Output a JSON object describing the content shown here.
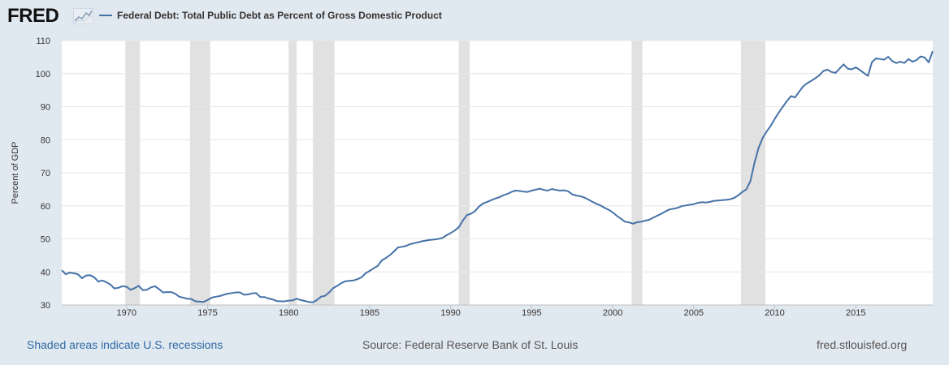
{
  "header": {
    "logo_text": "FRED",
    "logo_badge_icon": "line-chart-icon",
    "series_title": "Federal Debt: Total Public Debt as Percent of Gross Domestic Product",
    "series_color": "#4572a7"
  },
  "footer": {
    "recession_note": "Shaded areas indicate U.S. recessions",
    "source": "Source: Federal Reserve Bank of St. Louis",
    "site": "fred.stlouisfed.org"
  },
  "chart_data": {
    "type": "line",
    "title": "Federal Debt: Total Public Debt as Percent of Gross Domestic Product",
    "xlabel": "",
    "ylabel": "Percent of GDP",
    "xlim": [
      1966.0,
      2019.75
    ],
    "ylim": [
      30,
      110
    ],
    "x_ticks": [
      1970,
      1975,
      1980,
      1985,
      1990,
      1995,
      2000,
      2005,
      2010,
      2015
    ],
    "y_ticks": [
      30,
      40,
      50,
      60,
      70,
      80,
      90,
      100,
      110
    ],
    "grid": "horizontal",
    "recession_shading_color": "#e1e1e1",
    "recessions": [
      [
        1969.92,
        1970.83
      ],
      [
        1973.92,
        1975.17
      ],
      [
        1980.0,
        1980.5
      ],
      [
        1981.5,
        1982.83
      ],
      [
        1990.5,
        1991.17
      ],
      [
        2001.17,
        2001.83
      ],
      [
        2007.92,
        2009.42
      ]
    ],
    "series": [
      {
        "name": "Federal Debt: Total Public Debt as Percent of Gross Domestic Product",
        "color": "#4572a7",
        "points": [
          [
            1966.0,
            40.5
          ],
          [
            1966.25,
            39.3
          ],
          [
            1966.5,
            39.8
          ],
          [
            1966.75,
            39.6
          ],
          [
            1967.0,
            39.3
          ],
          [
            1967.25,
            38.1
          ],
          [
            1967.5,
            38.9
          ],
          [
            1967.75,
            39.0
          ],
          [
            1968.0,
            38.4
          ],
          [
            1968.25,
            37.1
          ],
          [
            1968.5,
            37.4
          ],
          [
            1968.75,
            36.9
          ],
          [
            1969.0,
            36.2
          ],
          [
            1969.25,
            35.0
          ],
          [
            1969.5,
            35.2
          ],
          [
            1969.75,
            35.7
          ],
          [
            1970.0,
            35.5
          ],
          [
            1970.25,
            34.6
          ],
          [
            1970.5,
            35.1
          ],
          [
            1970.75,
            35.8
          ],
          [
            1971.0,
            34.5
          ],
          [
            1971.25,
            34.6
          ],
          [
            1971.5,
            35.3
          ],
          [
            1971.75,
            35.7
          ],
          [
            1972.0,
            34.8
          ],
          [
            1972.25,
            33.8
          ],
          [
            1972.5,
            33.9
          ],
          [
            1972.75,
            33.9
          ],
          [
            1973.0,
            33.4
          ],
          [
            1973.25,
            32.5
          ],
          [
            1973.5,
            32.2
          ],
          [
            1973.75,
            31.9
          ],
          [
            1974.0,
            31.8
          ],
          [
            1974.25,
            31.1
          ],
          [
            1974.5,
            31.0
          ],
          [
            1974.75,
            30.9
          ],
          [
            1975.0,
            31.5
          ],
          [
            1975.25,
            32.2
          ],
          [
            1975.5,
            32.5
          ],
          [
            1975.75,
            32.7
          ],
          [
            1976.0,
            33.1
          ],
          [
            1976.25,
            33.4
          ],
          [
            1976.5,
            33.6
          ],
          [
            1976.75,
            33.8
          ],
          [
            1977.0,
            33.8
          ],
          [
            1977.25,
            33.1
          ],
          [
            1977.5,
            33.2
          ],
          [
            1977.75,
            33.5
          ],
          [
            1978.0,
            33.6
          ],
          [
            1978.25,
            32.4
          ],
          [
            1978.5,
            32.4
          ],
          [
            1978.75,
            32.0
          ],
          [
            1979.0,
            31.7
          ],
          [
            1979.25,
            31.2
          ],
          [
            1979.5,
            31.1
          ],
          [
            1979.75,
            31.1
          ],
          [
            1980.0,
            31.3
          ],
          [
            1980.25,
            31.4
          ],
          [
            1980.5,
            31.9
          ],
          [
            1980.75,
            31.5
          ],
          [
            1981.0,
            31.2
          ],
          [
            1981.25,
            30.9
          ],
          [
            1981.5,
            30.8
          ],
          [
            1981.75,
            31.5
          ],
          [
            1982.0,
            32.5
          ],
          [
            1982.25,
            32.8
          ],
          [
            1982.5,
            33.8
          ],
          [
            1982.75,
            35.1
          ],
          [
            1983.0,
            35.8
          ],
          [
            1983.25,
            36.6
          ],
          [
            1983.5,
            37.2
          ],
          [
            1983.75,
            37.3
          ],
          [
            1984.0,
            37.4
          ],
          [
            1984.25,
            37.8
          ],
          [
            1984.5,
            38.4
          ],
          [
            1984.75,
            39.6
          ],
          [
            1985.0,
            40.3
          ],
          [
            1985.25,
            41.1
          ],
          [
            1985.5,
            41.8
          ],
          [
            1985.75,
            43.5
          ],
          [
            1986.0,
            44.2
          ],
          [
            1986.25,
            45.1
          ],
          [
            1986.5,
            46.2
          ],
          [
            1986.75,
            47.4
          ],
          [
            1987.0,
            47.6
          ],
          [
            1987.25,
            47.9
          ],
          [
            1987.5,
            48.4
          ],
          [
            1987.75,
            48.7
          ],
          [
            1988.0,
            49.0
          ],
          [
            1988.25,
            49.3
          ],
          [
            1988.5,
            49.5
          ],
          [
            1988.75,
            49.7
          ],
          [
            1989.0,
            49.8
          ],
          [
            1989.25,
            50.0
          ],
          [
            1989.5,
            50.3
          ],
          [
            1989.75,
            51.1
          ],
          [
            1990.0,
            51.8
          ],
          [
            1990.25,
            52.5
          ],
          [
            1990.5,
            53.5
          ],
          [
            1990.75,
            55.5
          ],
          [
            1991.0,
            57.2
          ],
          [
            1991.25,
            57.6
          ],
          [
            1991.5,
            58.4
          ],
          [
            1991.75,
            59.8
          ],
          [
            1992.0,
            60.7
          ],
          [
            1992.25,
            61.2
          ],
          [
            1992.5,
            61.7
          ],
          [
            1992.75,
            62.2
          ],
          [
            1993.0,
            62.6
          ],
          [
            1993.25,
            63.2
          ],
          [
            1993.5,
            63.6
          ],
          [
            1993.75,
            64.2
          ],
          [
            1994.0,
            64.6
          ],
          [
            1994.25,
            64.5
          ],
          [
            1994.5,
            64.3
          ],
          [
            1994.75,
            64.2
          ],
          [
            1995.0,
            64.6
          ],
          [
            1995.25,
            64.9
          ],
          [
            1995.5,
            65.2
          ],
          [
            1995.75,
            64.8
          ],
          [
            1996.0,
            64.6
          ],
          [
            1996.25,
            65.1
          ],
          [
            1996.5,
            64.8
          ],
          [
            1996.75,
            64.6
          ],
          [
            1997.0,
            64.7
          ],
          [
            1997.25,
            64.4
          ],
          [
            1997.5,
            63.5
          ],
          [
            1997.75,
            63.1
          ],
          [
            1998.0,
            62.9
          ],
          [
            1998.25,
            62.5
          ],
          [
            1998.5,
            61.9
          ],
          [
            1998.75,
            61.2
          ],
          [
            1999.0,
            60.6
          ],
          [
            1999.25,
            60.1
          ],
          [
            1999.5,
            59.4
          ],
          [
            1999.75,
            58.8
          ],
          [
            2000.0,
            58.0
          ],
          [
            2000.25,
            57.0
          ],
          [
            2000.5,
            56.1
          ],
          [
            2000.75,
            55.2
          ],
          [
            2001.0,
            55.0
          ],
          [
            2001.25,
            54.6
          ],
          [
            2001.5,
            55.0
          ],
          [
            2001.75,
            55.2
          ],
          [
            2002.0,
            55.5
          ],
          [
            2002.25,
            55.8
          ],
          [
            2002.5,
            56.4
          ],
          [
            2002.75,
            57.0
          ],
          [
            2003.0,
            57.6
          ],
          [
            2003.25,
            58.3
          ],
          [
            2003.5,
            58.9
          ],
          [
            2003.75,
            59.1
          ],
          [
            2004.0,
            59.4
          ],
          [
            2004.25,
            59.9
          ],
          [
            2004.5,
            60.1
          ],
          [
            2004.75,
            60.3
          ],
          [
            2005.0,
            60.5
          ],
          [
            2005.25,
            60.9
          ],
          [
            2005.5,
            61.1
          ],
          [
            2005.75,
            61.0
          ],
          [
            2006.0,
            61.2
          ],
          [
            2006.25,
            61.5
          ],
          [
            2006.5,
            61.6
          ],
          [
            2006.75,
            61.7
          ],
          [
            2007.0,
            61.8
          ],
          [
            2007.25,
            62.0
          ],
          [
            2007.5,
            62.4
          ],
          [
            2007.75,
            63.2
          ],
          [
            2008.0,
            64.2
          ],
          [
            2008.25,
            65.0
          ],
          [
            2008.5,
            67.5
          ],
          [
            2008.75,
            73.0
          ],
          [
            2009.0,
            77.5
          ],
          [
            2009.25,
            80.5
          ],
          [
            2009.5,
            82.5
          ],
          [
            2009.75,
            84.2
          ],
          [
            2010.0,
            86.3
          ],
          [
            2010.25,
            88.2
          ],
          [
            2010.5,
            90.0
          ],
          [
            2010.75,
            91.7
          ],
          [
            2011.0,
            93.2
          ],
          [
            2011.25,
            92.8
          ],
          [
            2011.5,
            94.5
          ],
          [
            2011.75,
            96.1
          ],
          [
            2012.0,
            97.1
          ],
          [
            2012.25,
            97.8
          ],
          [
            2012.5,
            98.6
          ],
          [
            2012.75,
            99.5
          ],
          [
            2013.0,
            100.8
          ],
          [
            2013.25,
            101.2
          ],
          [
            2013.5,
            100.5
          ],
          [
            2013.75,
            100.2
          ],
          [
            2014.0,
            101.5
          ],
          [
            2014.25,
            102.8
          ],
          [
            2014.5,
            101.5
          ],
          [
            2014.75,
            101.3
          ],
          [
            2015.0,
            101.9
          ],
          [
            2015.25,
            101.1
          ],
          [
            2015.5,
            100.2
          ],
          [
            2015.75,
            99.3
          ],
          [
            2016.0,
            103.5
          ],
          [
            2016.25,
            104.6
          ],
          [
            2016.5,
            104.4
          ],
          [
            2016.75,
            104.2
          ],
          [
            2017.0,
            105.1
          ],
          [
            2017.25,
            103.8
          ],
          [
            2017.5,
            103.2
          ],
          [
            2017.75,
            103.6
          ],
          [
            2018.0,
            103.2
          ],
          [
            2018.25,
            104.4
          ],
          [
            2018.5,
            103.6
          ],
          [
            2018.75,
            104.1
          ],
          [
            2019.0,
            105.2
          ],
          [
            2019.25,
            104.9
          ],
          [
            2019.5,
            103.4
          ],
          [
            2019.75,
            106.8
          ]
        ]
      }
    ]
  }
}
